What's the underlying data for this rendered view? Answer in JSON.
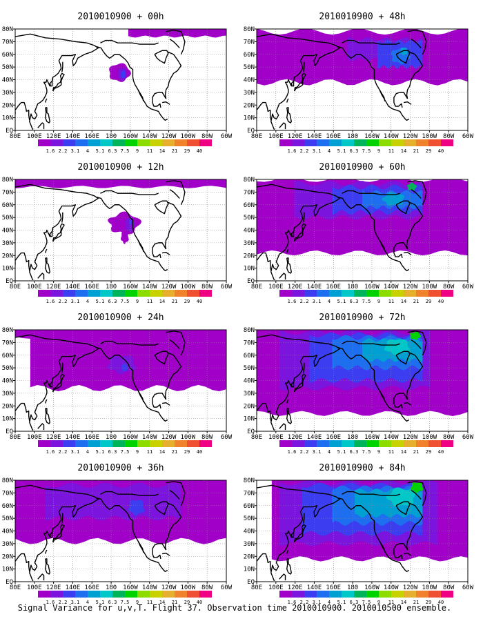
{
  "caption": "Signal Variance for u,v,T. Flight 37. Observation time 2010010900. 2010010500 ensemble.",
  "colorbar": {
    "labels": [
      "1.6",
      "2.2",
      "3.1",
      "4",
      "5.1",
      "6.3",
      "7.5",
      "9",
      "11",
      "14",
      "21",
      "29",
      "40"
    ],
    "colors": [
      "#a000c8",
      "#7b14dc",
      "#3c3cf0",
      "#1e6ef0",
      "#00a0d2",
      "#00c8c8",
      "#00b45a",
      "#00d200",
      "#8cdc00",
      "#c8d200",
      "#e6af2d",
      "#f0822d",
      "#f05032",
      "#f00082"
    ]
  },
  "axes": {
    "x_tick_labels": [
      "80E",
      "100E",
      "120E",
      "140E",
      "160E",
      "180",
      "160W",
      "140W",
      "120W",
      "100W",
      "80W",
      "60W"
    ],
    "y_tick_labels": [
      "EQ",
      "10N",
      "20N",
      "30N",
      "40N",
      "50N",
      "60N",
      "70N",
      "80N"
    ]
  },
  "chart_data": [
    {
      "type": "heatmap",
      "title": "2010010900 + 00h",
      "lead_hours": 0,
      "max_level": "4"
    },
    {
      "type": "heatmap",
      "title": "2010010900 + 48h",
      "lead_hours": 48,
      "max_level": "5.1"
    },
    {
      "type": "heatmap",
      "title": "2010010900 + 12h",
      "lead_hours": 12,
      "max_level": "3.1"
    },
    {
      "type": "heatmap",
      "title": "2010010900 + 60h",
      "lead_hours": 60,
      "max_level": "7.5"
    },
    {
      "type": "heatmap",
      "title": "2010010900 + 24h",
      "lead_hours": 24,
      "max_level": "3.1"
    },
    {
      "type": "heatmap",
      "title": "2010010900 + 72h",
      "lead_hours": 72,
      "max_level": "9"
    },
    {
      "type": "heatmap",
      "title": "2010010900 + 36h",
      "lead_hours": 36,
      "max_level": "3.1"
    },
    {
      "type": "heatmap",
      "title": "2010010900 + 84h",
      "lead_hours": 84,
      "max_level": "9"
    }
  ]
}
